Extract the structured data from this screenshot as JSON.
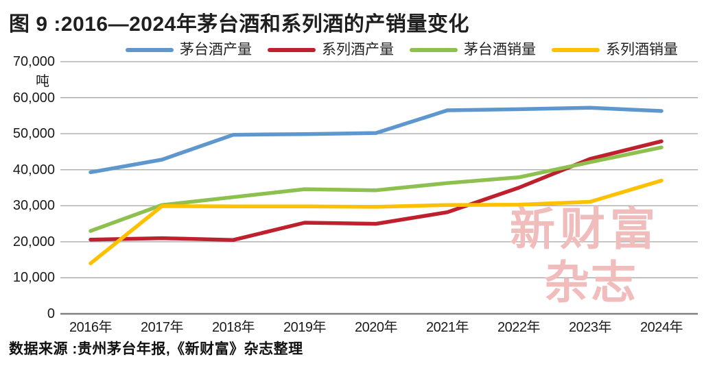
{
  "title": "图 9 :2016—2024年茅台酒和系列酒的产销量变化",
  "source": "数据来源 :贵州茅台年报,《新财富》杂志整理",
  "unit_label": "吨",
  "watermark": {
    "line1": "新财富",
    "line2": "杂志",
    "color": "#F0BCBC"
  },
  "axis": {
    "y_tick_labels": [
      "70,000",
      "60,000",
      "50,000",
      "40,000",
      "30,000",
      "20,000",
      "10,000",
      "0"
    ],
    "x_tick_labels": [
      "2016年",
      "2017年",
      "2018年",
      "2019年",
      "2020年",
      "2021年",
      "2022年",
      "2023年",
      "2024年"
    ]
  },
  "colors": {
    "gridline": "#A3A3A3",
    "axis_line": "#7F7F7F",
    "text": "#1a1a1a"
  },
  "chart_data": {
    "type": "line",
    "title": "图 9 :2016—2024年茅台酒和系列酒的产销量变化",
    "xlabel": "",
    "ylabel": "吨",
    "ylim": [
      0,
      70000
    ],
    "y_tick_step": 10000,
    "grid": true,
    "legend_position": "top",
    "categories": [
      "2016年",
      "2017年",
      "2018年",
      "2019年",
      "2020年",
      "2021年",
      "2022年",
      "2023年",
      "2024年"
    ],
    "series": [
      {
        "name": "茅台酒产量",
        "color": "#5E96CE",
        "values": [
          39300,
          42800,
          49700,
          49900,
          50200,
          56500,
          56800,
          57200,
          56300
        ]
      },
      {
        "name": "系列酒产量",
        "color": "#BE202E",
        "values": [
          20600,
          21000,
          20500,
          25300,
          25000,
          28200,
          35000,
          43000,
          47900
        ]
      },
      {
        "name": "茅台酒销量",
        "color": "#8DC04E",
        "values": [
          23000,
          30200,
          32400,
          34600,
          34300,
          36300,
          37900,
          42100,
          46200
        ]
      },
      {
        "name": "系列酒销量",
        "color": "#FFC000",
        "values": [
          14000,
          29900,
          29800,
          29800,
          29700,
          30200,
          30300,
          31100,
          37000
        ]
      }
    ]
  }
}
